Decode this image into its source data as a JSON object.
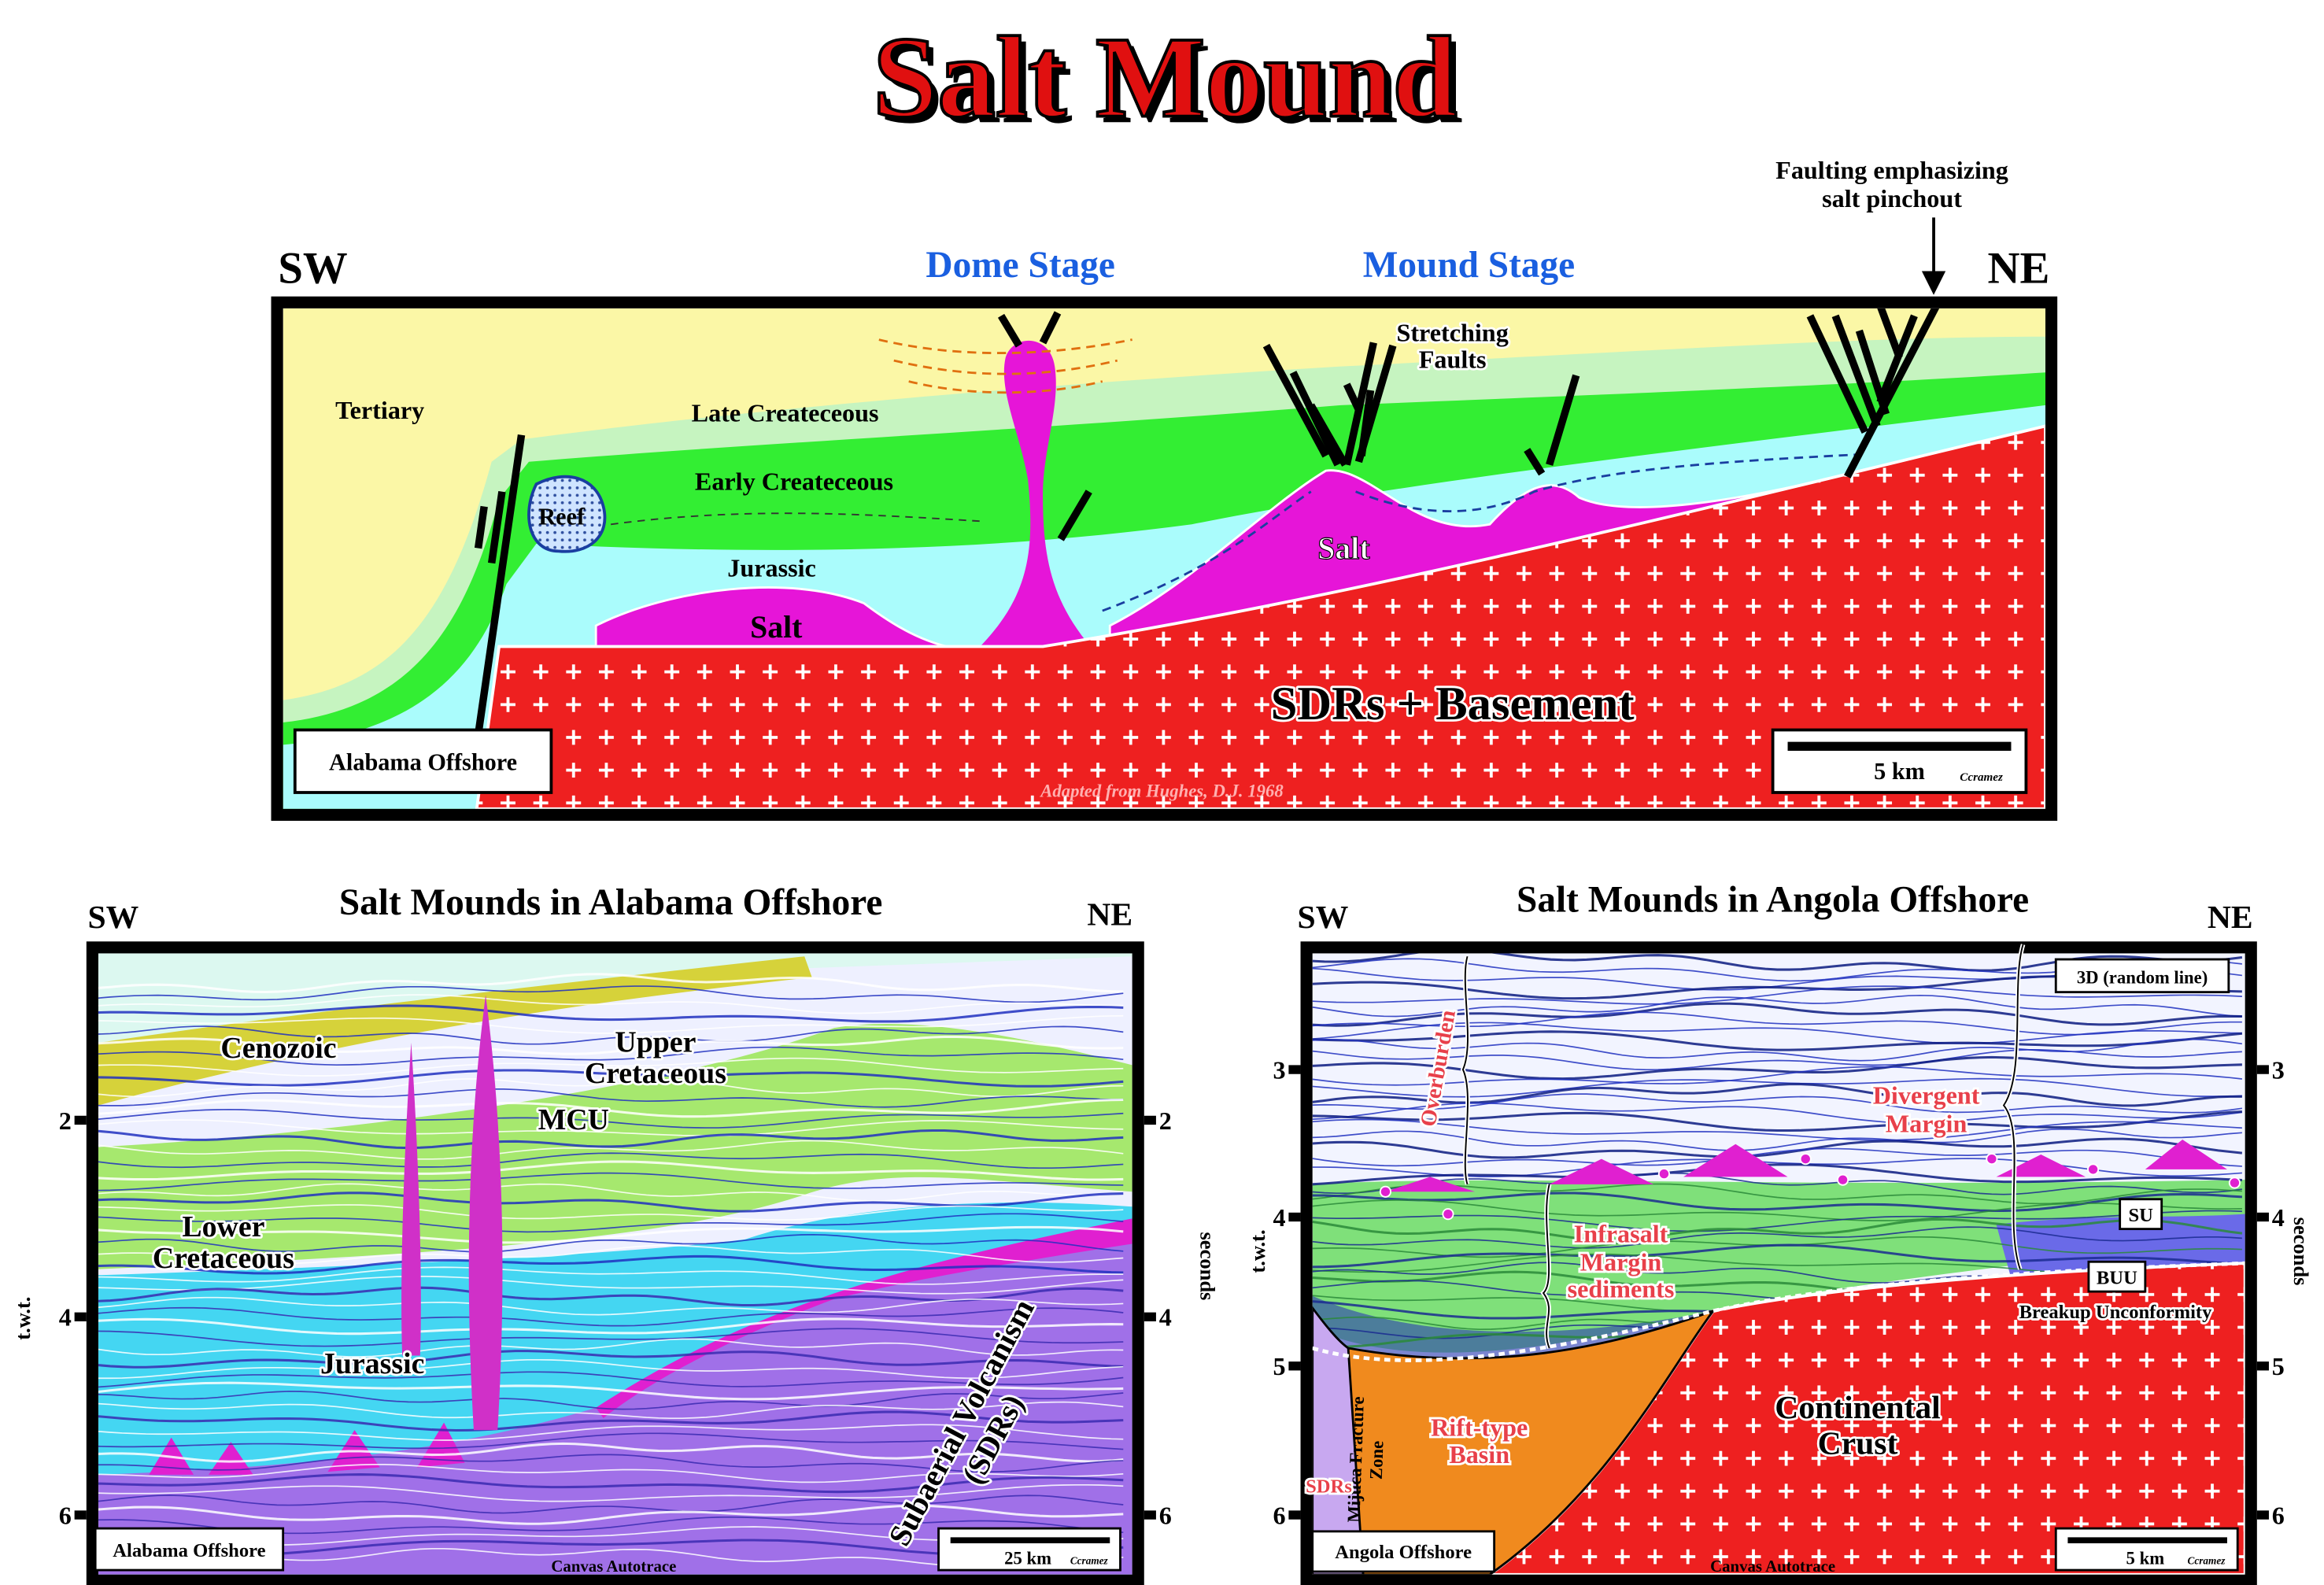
{
  "title": "Salt Mound",
  "top_section": {
    "left": "SW",
    "right": "NE",
    "dome_stage": "Dome Stage",
    "mound_stage": "Mound Stage",
    "fault_note": [
      "Faulting emphasizing",
      "salt pinchout"
    ],
    "labels": {
      "tertiary": "Tertiary",
      "late_cretaceous": "Late Createceous",
      "early_cretaceous": "Early Createceous",
      "reef": "Reef",
      "jurassic": "Jurassic",
      "salt_left": "Salt",
      "salt_right": "Salt",
      "stretching_faults": [
        "Stretching",
        "Faults"
      ],
      "basement": "SDRs + Basement"
    },
    "location": "Alabama Offshore",
    "scale": "5 km",
    "author": "Ccramez",
    "source": "Adapted from Hughes, D.J. 1968"
  },
  "alabama_section": {
    "title": "Salt Mounds in Alabama Offshore",
    "left": "SW",
    "right": "NE",
    "y_axis_left": "t.w.t.",
    "y_axis_right": "seconds",
    "ticks": [
      "2",
      "4",
      "6"
    ],
    "labels": {
      "cenozoic": "Cenozoic",
      "upper_cretaceous": [
        "Upper",
        "Cretaceous"
      ],
      "mcu": "MCU",
      "lower_cretaceous": [
        "Lower",
        "Cretaceous"
      ],
      "jurassic": "Jurassic",
      "volcanism": [
        "Subaerial Volcanism",
        "(SDRs)"
      ]
    },
    "location": "Alabama Offshore",
    "scale": "25 km",
    "author": "Ccramez",
    "credit": "Canvas Autotrace"
  },
  "angola_section": {
    "title": "Salt Mounds in Angola Offshore",
    "left": "SW",
    "right": "NE",
    "y_axis_left": "t.w.t.",
    "y_axis_right": "seconds",
    "ticks": [
      "3",
      "4",
      "5",
      "6"
    ],
    "labels": {
      "survey": "3D (random line)",
      "overburden": "Overburden",
      "divergent_margin": [
        "Divergent",
        "Margin"
      ],
      "infrasalt": [
        "Infrasalt",
        "Margin",
        "sediments"
      ],
      "su": "SU",
      "buu": "BUU",
      "breakup": "Breakup Unconformity",
      "continental_crust": [
        "Continental",
        "Crust"
      ],
      "rift_basin": [
        "Rift-type",
        "Basin"
      ],
      "mijuca": [
        "Mijuca Fracture",
        "Zone"
      ],
      "sdrs": "SDRs"
    },
    "location": "Angola Offshore",
    "scale": "5 km",
    "author": "Ccramez",
    "credit": "Canvas Autotrace"
  }
}
